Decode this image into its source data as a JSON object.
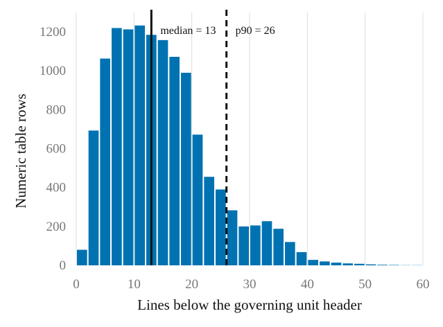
{
  "chart_data": {
    "type": "bar",
    "title": "",
    "xlabel": "Lines below the governing unit header",
    "ylabel": "Numeric table rows",
    "xlim": [
      0,
      60
    ],
    "ylim": [
      0,
      1300
    ],
    "x_ticks": [
      0,
      10,
      20,
      30,
      40,
      50,
      60
    ],
    "y_ticks": [
      0,
      200,
      400,
      600,
      800,
      1000,
      1200
    ],
    "bin_width": 2,
    "bins": [
      0,
      2,
      4,
      6,
      8,
      10,
      12,
      14,
      16,
      18,
      20,
      22,
      24,
      26,
      28,
      30,
      32,
      34,
      36,
      38,
      40,
      42,
      44,
      46,
      48,
      50,
      52,
      54,
      56,
      58
    ],
    "values": [
      80,
      693,
      1063,
      1220,
      1213,
      1233,
      1185,
      1158,
      1072,
      990,
      672,
      455,
      390,
      283,
      200,
      205,
      227,
      188,
      120,
      68,
      28,
      20,
      14,
      10,
      8,
      5,
      3,
      2,
      1,
      1
    ],
    "grid": "x",
    "bar_color": "#0072b2",
    "annotations": [
      {
        "value": 13,
        "label": "median = 13",
        "style": "solid"
      },
      {
        "value": 26,
        "label": "p90 = 26",
        "style": "dashed"
      }
    ]
  }
}
